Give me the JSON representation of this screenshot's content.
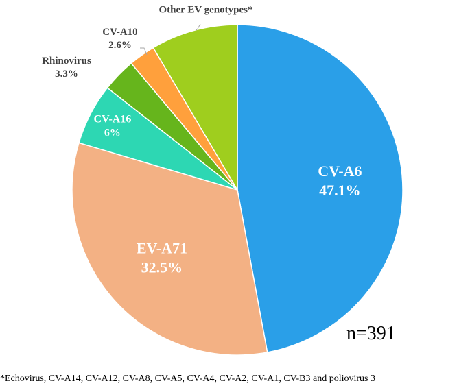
{
  "chart_data": {
    "type": "pie",
    "series": [
      {
        "name": "CV-A6",
        "label": "CV-A6",
        "value_label": "47.1%",
        "value": 47.1,
        "color": "#2a9fe8"
      },
      {
        "name": "EV-A71",
        "label": "EV-A71",
        "value_label": "32.5%",
        "value": 32.5,
        "color": "#f3b184"
      },
      {
        "name": "CV-A16",
        "label": "CV-A16",
        "value_label": "6%",
        "value": 6.0,
        "color": "#2dd7b3"
      },
      {
        "name": "Rhinovirus",
        "label": "Rhinovirus",
        "value_label": "3.3%",
        "value": 3.3,
        "color": "#66b51c"
      },
      {
        "name": "CV-A10",
        "label": "CV-A10",
        "value_label": "2.6%",
        "value": 2.6,
        "color": "#ffa03c"
      },
      {
        "name": "Other EV genotypes*",
        "label": "Other EV genotypes*",
        "value_label": "",
        "value": 8.5,
        "color": "#9fce1e"
      }
    ],
    "sample_size": "n=391",
    "footnote": "*Echovirus, CV-A14, CV-A12, CV-A8, CV-A5, CV-A4, CV-A2, CV-A1, CV-B3 and poliovirus 3"
  }
}
